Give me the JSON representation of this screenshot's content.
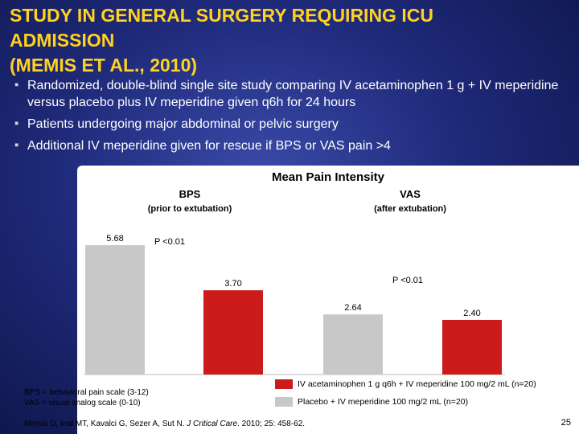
{
  "slide": {
    "title_line1": "Study in General Surgery Requiring ICU",
    "title_line2": "Admission",
    "title_line3": "(Memis et al., 2010)",
    "bullets": [
      "Randomized, double-blind single site study comparing IV acetaminophen 1 g + IV meperidine versus placebo plus IV meperidine given q6h for 24 hours",
      "Patients undergoing major abdominal or pelvic surgery",
      "Additional IV meperidine given for rescue if BPS or VAS pain >4"
    ],
    "abbreviations": [
      "BPS = behavioral pain scale (3-12)",
      "VAS = visual analog scale (0-10)"
    ],
    "citation_authors": "Memis D, Inal MT, Kavalci G, Sezer A, Sut N. ",
    "citation_journal": "J Critical Care",
    "citation_rest": ". 2010; 25: 458-62.",
    "page_number": "25"
  },
  "chart_data": {
    "type": "bar",
    "title": "Mean Pain Intensity",
    "groups": [
      {
        "name": "BPS",
        "sub": "(prior to extubation)",
        "p_value": "P <0.01"
      },
      {
        "name": "VAS",
        "sub": "(after extubation)",
        "p_value": "P <0.01"
      }
    ],
    "series": [
      {
        "name": "Placebo + IV meperidine 100 mg/2 mL (n=20)",
        "color": "#c8c8c8",
        "values": [
          5.68,
          2.64
        ],
        "labels": [
          "5.68",
          "2.64"
        ]
      },
      {
        "name": "IV acetaminophen 1 g q6h + IV meperidine 100 mg/2 mL (n=20)",
        "color": "#cc1b1b",
        "values": [
          3.7,
          2.4
        ],
        "labels": [
          "3.70",
          "2.40"
        ]
      }
    ],
    "ylim": [
      0,
      6
    ],
    "grid": false,
    "legend_position": "bottom-right"
  }
}
